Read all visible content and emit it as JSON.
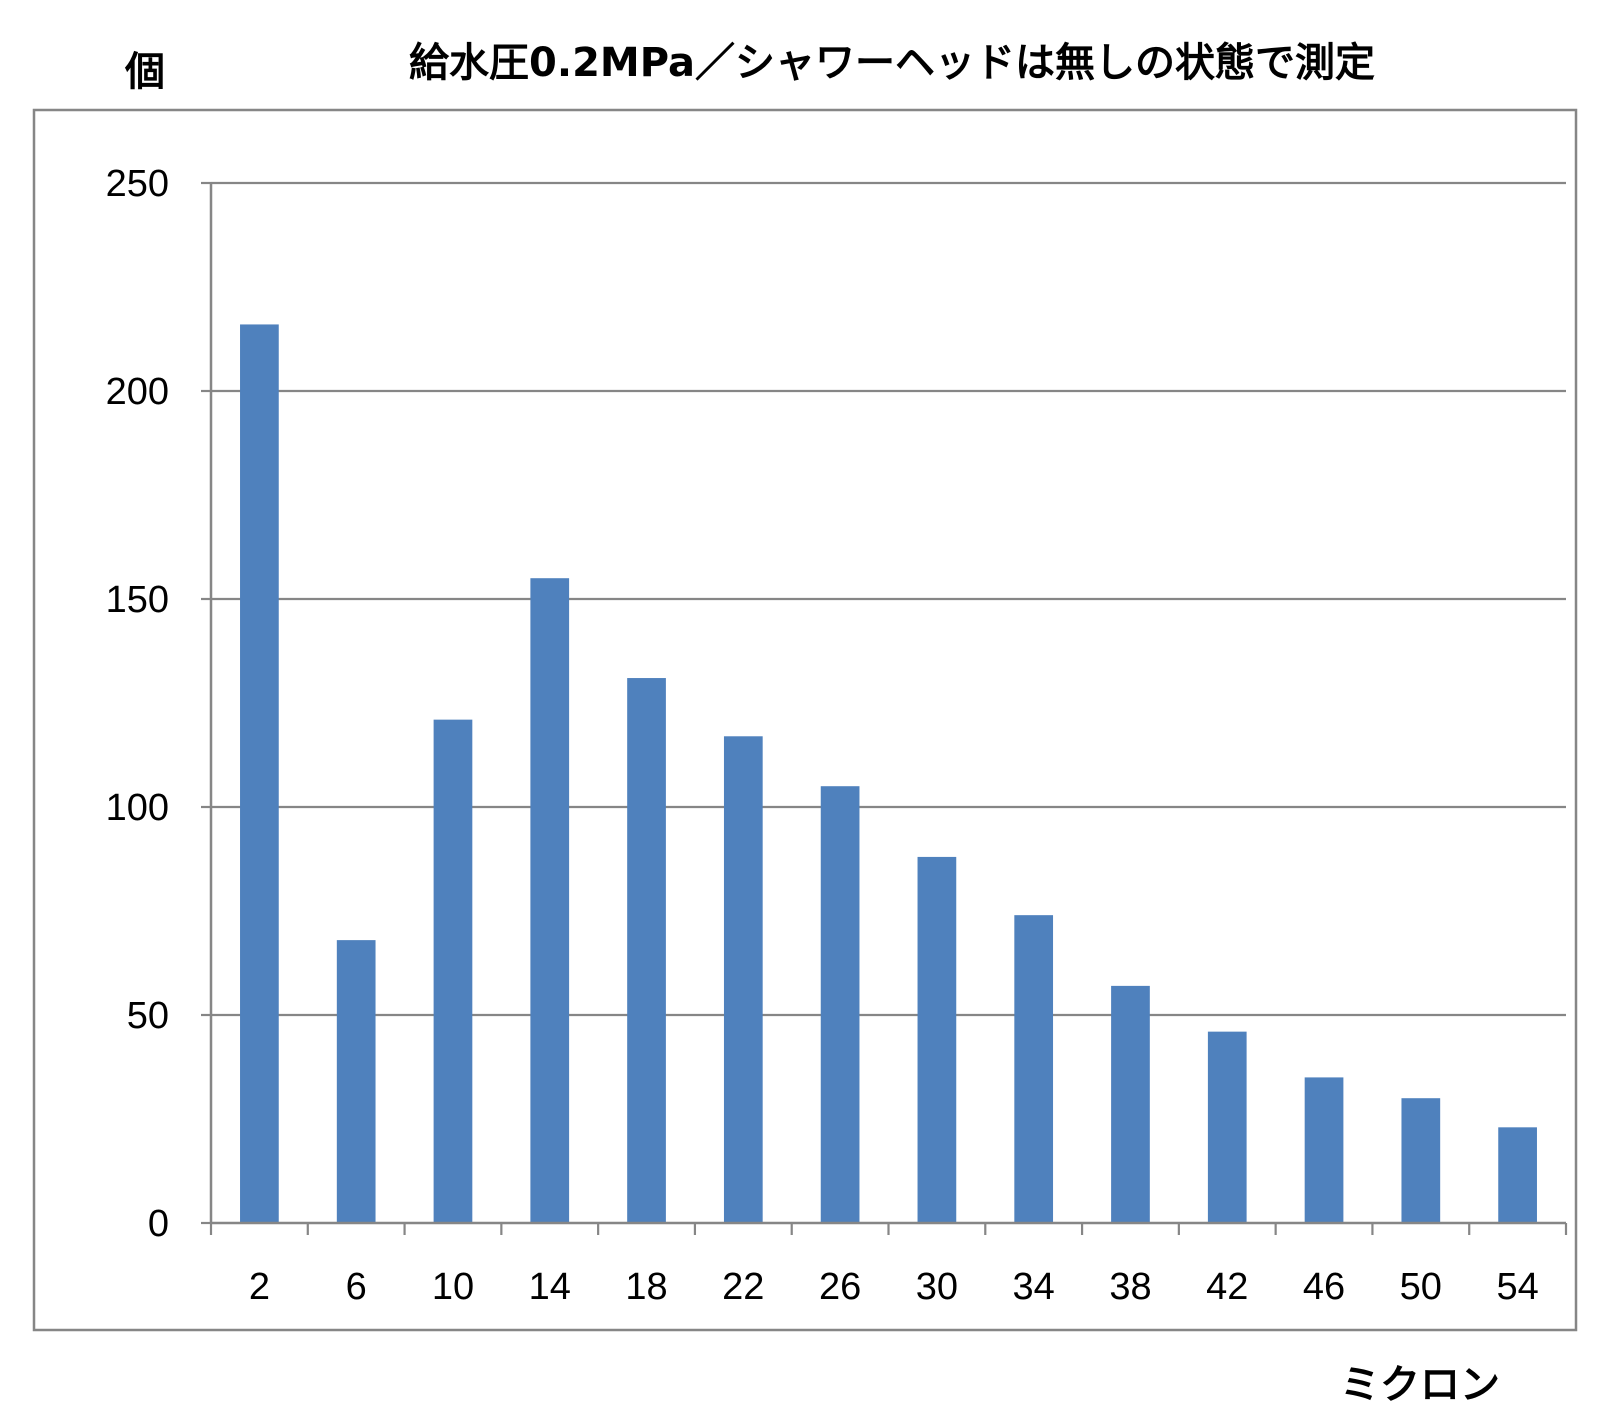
{
  "chart_data": {
    "type": "bar",
    "title": "給水圧0.2MPa／シャワーヘッドは無しの状態で測定",
    "ylabel": "個",
    "xlabel": "ミクロン",
    "categories": [
      "2",
      "6",
      "10",
      "14",
      "18",
      "22",
      "26",
      "30",
      "34",
      "38",
      "42",
      "46",
      "50",
      "54"
    ],
    "values": [
      216,
      68,
      121,
      155,
      131,
      117,
      105,
      88,
      74,
      57,
      46,
      35,
      30,
      23
    ],
    "ylim": [
      0,
      250
    ],
    "yticks": [
      "0",
      "50",
      "100",
      "150",
      "200",
      "250"
    ],
    "grid": true,
    "legend": "none",
    "bar_color": "#4F81BD",
    "grid_color": "#868686",
    "frame_color": "#868686"
  }
}
